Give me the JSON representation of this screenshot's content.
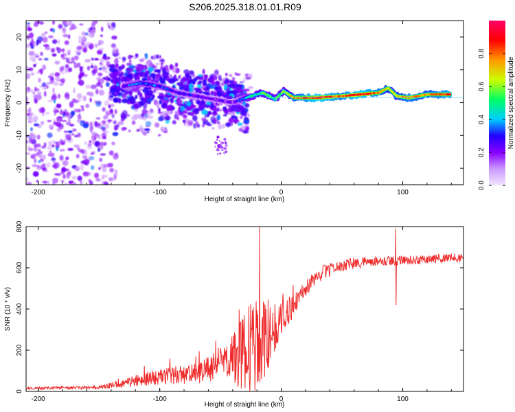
{
  "title": "S206.2025.318.01.01.R09",
  "chart_data": [
    {
      "type": "heatmap",
      "name": "spectrogram",
      "xlabel": "Height of straight line (km)",
      "ylabel": "Frequency (Hz)",
      "xlim": [
        -210,
        150
      ],
      "ylim": [
        -25,
        25
      ],
      "xticks": [
        -200,
        -100,
        0,
        100
      ],
      "yticks": [
        -20,
        -10,
        0,
        10,
        20
      ],
      "colorbar": {
        "label": "Normalized spectral amplitude",
        "range": [
          0,
          1
        ],
        "ticks": [
          0.0,
          0.2,
          0.4,
          0.6,
          0.8
        ],
        "tick_labels": [
          "0.0",
          "0.2",
          "0.4",
          "0.6",
          "0.8"
        ],
        "colors": [
          "#f2e6ff",
          "#cc99ff",
          "#8800ff",
          "#2200ff",
          "#00ccff",
          "#00ff66",
          "#ccff00",
          "#ff9900",
          "#ff0000",
          "#ff0066"
        ]
      },
      "ridge": [
        {
          "x": -130,
          "y": 5,
          "a": 0.3
        },
        {
          "x": -115,
          "y": 6,
          "a": 0.35
        },
        {
          "x": -100,
          "y": 5,
          "a": 0.3
        },
        {
          "x": -85,
          "y": 3,
          "a": 0.25
        },
        {
          "x": -70,
          "y": 2,
          "a": 0.25
        },
        {
          "x": -55,
          "y": 1,
          "a": 0.2
        },
        {
          "x": -40,
          "y": 0,
          "a": 0.2
        },
        {
          "x": -25,
          "y": 2,
          "a": 0.45
        },
        {
          "x": -15,
          "y": 3,
          "a": 0.55
        },
        {
          "x": -5,
          "y": 1,
          "a": 0.5
        },
        {
          "x": 2,
          "y": 3.5,
          "a": 0.55
        },
        {
          "x": 10,
          "y": 1.5,
          "a": 0.75
        },
        {
          "x": 30,
          "y": 1.5,
          "a": 0.9
        },
        {
          "x": 50,
          "y": 2,
          "a": 0.8
        },
        {
          "x": 65,
          "y": 2.5,
          "a": 0.9
        },
        {
          "x": 80,
          "y": 3,
          "a": 0.8
        },
        {
          "x": 88,
          "y": 4.5,
          "a": 0.7
        },
        {
          "x": 95,
          "y": 2,
          "a": 0.7
        },
        {
          "x": 105,
          "y": 1.5,
          "a": 0.8
        },
        {
          "x": 120,
          "y": 2.5,
          "a": 0.75
        },
        {
          "x": 140,
          "y": 2.5,
          "a": 0.85
        }
      ]
    },
    {
      "type": "line",
      "name": "snr",
      "xlabel": "Height of straight line (km)",
      "ylabel": "SNR (10 * v/v)",
      "xlim": [
        -210,
        150
      ],
      "ylim": [
        0,
        800
      ],
      "xticks": [
        -200,
        -100,
        0,
        100
      ],
      "yticks": [
        0,
        200,
        400,
        600,
        800
      ],
      "color": "#ee2b2b",
      "trend": [
        {
          "x": -210,
          "y": 15,
          "noise": 12
        },
        {
          "x": -150,
          "y": 20,
          "noise": 15
        },
        {
          "x": -130,
          "y": 40,
          "noise": 40
        },
        {
          "x": -100,
          "y": 70,
          "noise": 70
        },
        {
          "x": -80,
          "y": 80,
          "noise": 80
        },
        {
          "x": -65,
          "y": 90,
          "noise": 100
        },
        {
          "x": -55,
          "y": 130,
          "noise": 140
        },
        {
          "x": -45,
          "y": 140,
          "noise": 160
        },
        {
          "x": -35,
          "y": 170,
          "noise": 200
        },
        {
          "x": -25,
          "y": 210,
          "noise": 280
        },
        {
          "x": -15,
          "y": 240,
          "noise": 260
        },
        {
          "x": 0,
          "y": 350,
          "noise": 140
        },
        {
          "x": 10,
          "y": 420,
          "noise": 110
        },
        {
          "x": 20,
          "y": 500,
          "noise": 80
        },
        {
          "x": 35,
          "y": 580,
          "noise": 60
        },
        {
          "x": 55,
          "y": 620,
          "noise": 50
        },
        {
          "x": 80,
          "y": 635,
          "noise": 45
        },
        {
          "x": 100,
          "y": 635,
          "noise": 40
        },
        {
          "x": 150,
          "y": 650,
          "noise": 40
        }
      ],
      "spikes": [
        {
          "x": -18,
          "y": 800
        },
        {
          "x": -16,
          "y": 60
        },
        {
          "x": 94,
          "y": 790
        },
        {
          "x": 94.5,
          "y": 420
        }
      ]
    }
  ]
}
